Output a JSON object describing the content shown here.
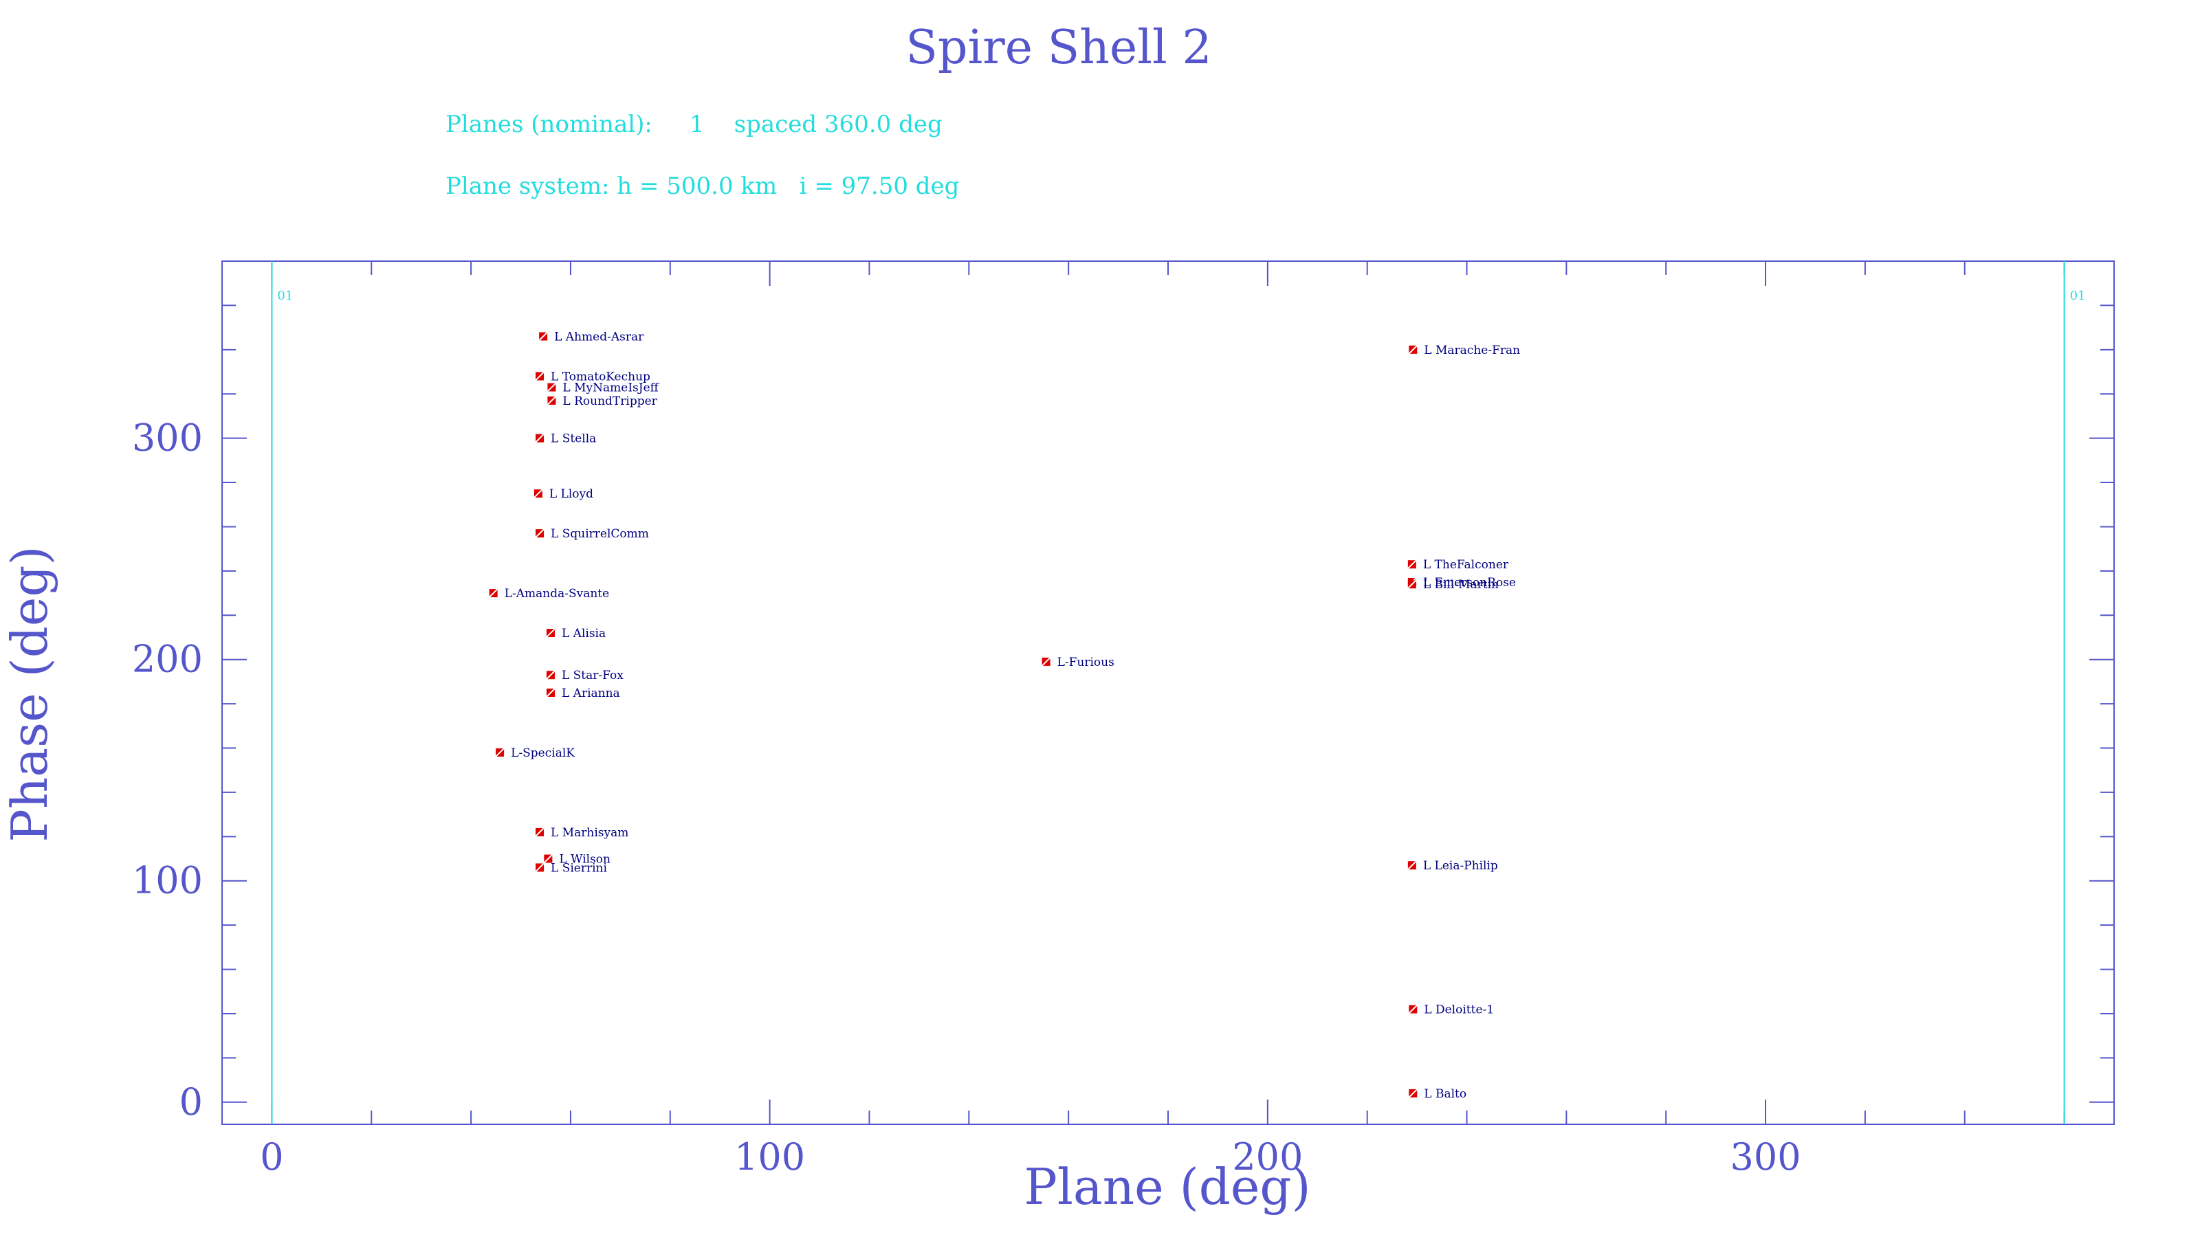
{
  "chart_data": {
    "type": "scatter",
    "title": "Spire Shell 2",
    "info_lines": [
      "Planes (nominal):     1    spaced 360.0 deg",
      "Plane system: h = 500.0 km   i = 97.50 deg"
    ],
    "xlabel": "Plane (deg)",
    "ylabel": "Phase (deg)",
    "xlim": [
      -10,
      370
    ],
    "ylim": [
      -10,
      380
    ],
    "x_ticks": [
      0,
      100,
      200,
      300
    ],
    "y_ticks": [
      0,
      100,
      200,
      300
    ],
    "plane_lines": [
      {
        "x": 0,
        "label": "01"
      },
      {
        "x": 360,
        "label": "01"
      }
    ],
    "points": [
      {
        "x": 54.5,
        "y": 346,
        "label": "L Ahmed-Asrar"
      },
      {
        "x": 53.8,
        "y": 328,
        "label": "L TomatoKechup"
      },
      {
        "x": 56.2,
        "y": 323,
        "label": "L MyNameIsJeff"
      },
      {
        "x": 56.2,
        "y": 317,
        "label": "L RoundTripper"
      },
      {
        "x": 53.8,
        "y": 300,
        "label": "L Stella"
      },
      {
        "x": 53.5,
        "y": 275,
        "label": "L Lloyd"
      },
      {
        "x": 53.8,
        "y": 257,
        "label": "L SquirrelComm"
      },
      {
        "x": 44.5,
        "y": 230,
        "label": "L-Amanda-Svante"
      },
      {
        "x": 56.0,
        "y": 212,
        "label": "L Alisia"
      },
      {
        "x": 56.0,
        "y": 193,
        "label": "L Star-Fox"
      },
      {
        "x": 56.0,
        "y": 185,
        "label": "L Arianna"
      },
      {
        "x": 45.8,
        "y": 158,
        "label": "L-SpecialK"
      },
      {
        "x": 53.8,
        "y": 122,
        "label": "L Marhisyam"
      },
      {
        "x": 55.5,
        "y": 110,
        "label": "L Wilson"
      },
      {
        "x": 53.8,
        "y": 106,
        "label": "L Sierrini"
      },
      {
        "x": 155.5,
        "y": 199,
        "label": "L-Furious"
      },
      {
        "x": 229.2,
        "y": 340,
        "label": "L Marache-Fran"
      },
      {
        "x": 229.0,
        "y": 243,
        "label": "L TheFalconer"
      },
      {
        "x": 229.0,
        "y": 235,
        "label": "L EmersonRose"
      },
      {
        "x": 229.0,
        "y": 234,
        "label": "L Bill-Martin"
      },
      {
        "x": 229.0,
        "y": 107,
        "label": "L Leia-Philip"
      },
      {
        "x": 229.2,
        "y": 42,
        "label": "L Deloitte-1"
      },
      {
        "x": 229.2,
        "y": 4,
        "label": "L Balto"
      }
    ],
    "grid": false,
    "colors": {
      "axis": "#5555cc",
      "info": "#22dddd",
      "plane_line": "#22dddd",
      "marker": "#dd0000",
      "point_label": "#000080"
    }
  }
}
